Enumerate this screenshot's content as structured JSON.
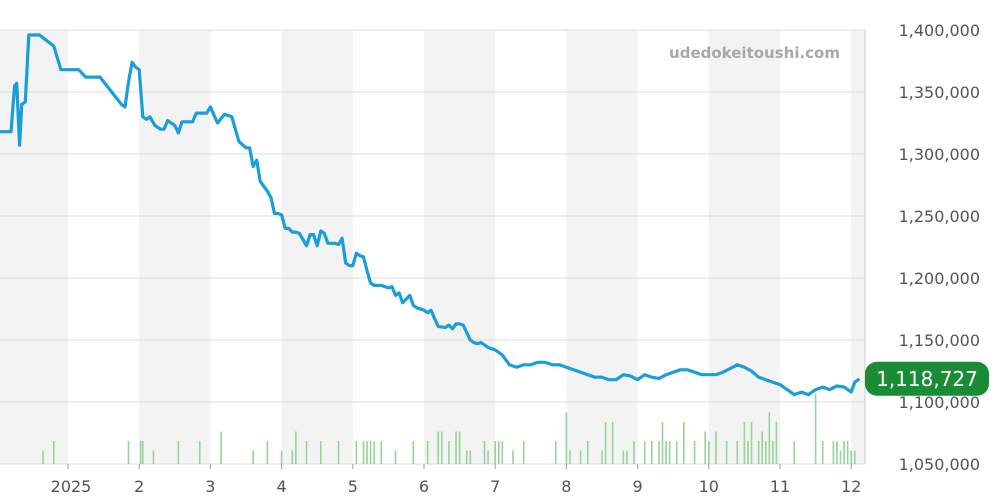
{
  "watermark": "udedokeitoushi.com",
  "colors": {
    "price_line": "#199ddb",
    "volume_bar": "#97d39a",
    "badge": "#1a8c35",
    "band": "#f3f3f3",
    "grid": "#dddddd"
  },
  "chart_data": {
    "type": "line",
    "title": "",
    "xlabel": "",
    "ylabel": "",
    "ylim": [
      1050000,
      1400000
    ],
    "y_ticks": [
      "1,400,000",
      "1,350,000",
      "1,300,000",
      "1,250,000",
      "1,200,000",
      "1,150,000",
      "1,100,000",
      "1,050,000"
    ],
    "y_tick_values": [
      1400000,
      1350000,
      1300000,
      1250000,
      1200000,
      1150000,
      1100000,
      1050000
    ],
    "x_tick_labels": [
      "2025",
      "2",
      "3",
      "4",
      "5",
      "6",
      "7",
      "8",
      "9",
      "10",
      "11",
      "12"
    ],
    "x_range_months": [
      -1.95,
      11.1
    ],
    "x_tick_months": [
      0,
      1,
      2,
      3,
      4,
      5,
      6,
      7,
      8,
      9,
      10,
      11
    ],
    "last_price_label": "1,118,727",
    "last_price": 1118727,
    "grid": true,
    "legend": "none",
    "series": [
      {
        "values_x_months": [
          -1.95,
          -1.9,
          -1.85,
          -1.8,
          -1.75,
          -1.3,
          -1.25,
          -1.1,
          -0.8,
          -0.75,
          -0.72,
          -0.68,
          -0.65,
          -0.6,
          -0.55,
          -0.4,
          -0.2,
          -0.1,
          0.15,
          0.25,
          0.45,
          0.75,
          0.8,
          0.85,
          0.9,
          0.95,
          1.0,
          1.05,
          1.1,
          1.15,
          1.22,
          1.3,
          1.35,
          1.4,
          1.45,
          1.5,
          1.55,
          1.6,
          1.65,
          1.7,
          1.75,
          1.8,
          1.85,
          1.9,
          1.95,
          2.0,
          2.1,
          2.2,
          2.3,
          2.4,
          2.5,
          2.55,
          2.6,
          2.65,
          2.7,
          2.8,
          2.85,
          2.9,
          2.95,
          3.0,
          3.05,
          3.1,
          3.15,
          3.2,
          3.25,
          3.3,
          3.35,
          3.4,
          3.45,
          3.5,
          3.55,
          3.6,
          3.65,
          3.7,
          3.75,
          3.8,
          3.85,
          3.9,
          3.95,
          4.0,
          4.05,
          4.1,
          4.15,
          4.2,
          4.25,
          4.3,
          4.4,
          4.5,
          4.55,
          4.6,
          4.65,
          4.7,
          4.8,
          4.85,
          4.9,
          5.0,
          5.05,
          5.1,
          5.15,
          5.2,
          5.3,
          5.35,
          5.4,
          5.45,
          5.5,
          5.55,
          5.6,
          5.65,
          5.7,
          5.75,
          5.8,
          5.85,
          5.9,
          5.95,
          6.0,
          6.1,
          6.2,
          6.3,
          6.4,
          6.5,
          6.6,
          6.7,
          6.8,
          6.9,
          7.0,
          7.1,
          7.2,
          7.3,
          7.4,
          7.5,
          7.6,
          7.7,
          7.8,
          7.9,
          8.0,
          8.1,
          8.2,
          8.3,
          8.4,
          8.5,
          8.6,
          8.7,
          8.8,
          8.9,
          9.0,
          9.1,
          9.2,
          9.3,
          9.4,
          9.5,
          9.6,
          9.7,
          9.8,
          9.9,
          10.0,
          10.1,
          10.2,
          10.3,
          10.4,
          10.5,
          10.6,
          10.7,
          10.8,
          10.9,
          11.0,
          11.05,
          11.1
        ],
        "values_y": [
          1365000,
          1345000,
          1345000,
          1328000,
          1327000,
          1327000,
          1318000,
          1318000,
          1318000,
          1355000,
          1357000,
          1307000,
          1340000,
          1342000,
          1396000,
          1396000,
          1387000,
          1368000,
          1368000,
          1362000,
          1362000,
          1340000,
          1338000,
          1358000,
          1374000,
          1370000,
          1368000,
          1330000,
          1328000,
          1330000,
          1323000,
          1320000,
          1320000,
          1327000,
          1325000,
          1323000,
          1317000,
          1326000,
          1326000,
          1326000,
          1326000,
          1333000,
          1333000,
          1333000,
          1333000,
          1338000,
          1325000,
          1332000,
          1330000,
          1310000,
          1305000,
          1305000,
          1290000,
          1295000,
          1278000,
          1270000,
          1265000,
          1252000,
          1252000,
          1251000,
          1240000,
          1240000,
          1237000,
          1237000,
          1236000,
          1231000,
          1226000,
          1235000,
          1235000,
          1226000,
          1238000,
          1236000,
          1228000,
          1228000,
          1228000,
          1227000,
          1232000,
          1212000,
          1210000,
          1210000,
          1220000,
          1218000,
          1217000,
          1206000,
          1196000,
          1194000,
          1194000,
          1192000,
          1193000,
          1186000,
          1188000,
          1180000,
          1186000,
          1178000,
          1176000,
          1174000,
          1172000,
          1174000,
          1167000,
          1161000,
          1160000,
          1162000,
          1159000,
          1163000,
          1163000,
          1162000,
          1156000,
          1150000,
          1148000,
          1147000,
          1148000,
          1146000,
          1144000,
          1143000,
          1142000,
          1138000,
          1130000,
          1128000,
          1130000,
          1130000,
          1132000,
          1132000,
          1130000,
          1130000,
          1128000,
          1126000,
          1124000,
          1122000,
          1120000,
          1120000,
          1118000,
          1118000,
          1122000,
          1121000,
          1118000,
          1122000,
          1120000,
          1119000,
          1122000,
          1124000,
          1126000,
          1126000,
          1124000,
          1122000,
          1122000,
          1122000,
          1124000,
          1127000,
          1130000,
          1128000,
          1125000,
          1120000,
          1118000,
          1116000,
          1114000,
          1110000,
          1106000,
          1108000,
          1106000,
          1110000,
          1112000,
          1110000,
          1113000,
          1112000,
          1108000,
          1116000,
          1118000,
          1119000,
          1118727,
          1118727
        ]
      }
    ],
    "volume_bars_x_months": [
      -0.35,
      -0.2,
      0.85,
      1.02,
      1.05,
      1.2,
      1.55,
      1.85,
      2.15,
      2.6,
      2.8,
      3.0,
      3.15,
      3.2,
      3.35,
      3.55,
      3.8,
      4.05,
      4.15,
      4.2,
      4.25,
      4.3,
      4.4,
      4.6,
      4.85,
      5.05,
      5.2,
      5.25,
      5.35,
      5.45,
      5.5,
      5.6,
      5.65,
      5.85,
      5.9,
      6.0,
      6.05,
      6.1,
      6.25,
      6.4,
      6.85,
      7.0,
      7.05,
      7.2,
      7.3,
      7.5,
      7.55,
      7.65,
      7.8,
      7.85,
      7.95,
      8.1,
      8.2,
      8.3,
      8.35,
      8.4,
      8.45,
      8.55,
      8.65,
      8.8,
      8.95,
      9.0,
      9.1,
      9.25,
      9.4,
      9.5,
      9.55,
      9.6,
      9.7,
      9.75,
      9.8,
      9.85,
      9.9,
      9.95,
      10.2,
      10.5,
      10.6,
      10.75,
      10.8,
      10.85,
      10.9,
      10.95,
      11.0,
      11.05
    ],
    "volume_bars_height": [
      1,
      2,
      2,
      2,
      2,
      1,
      2,
      2,
      3,
      1,
      2,
      1,
      1,
      3,
      2,
      2,
      2,
      2,
      2,
      2,
      2,
      2,
      2,
      1,
      2,
      2,
      3,
      3,
      2,
      3,
      3,
      1,
      1,
      2,
      1,
      2,
      2,
      2,
      1,
      2,
      2,
      5,
      1,
      1,
      2,
      1,
      4,
      4,
      1,
      1,
      2,
      2,
      2,
      2,
      4,
      2,
      2,
      2,
      4,
      2,
      3,
      2,
      3,
      2,
      2,
      4,
      2,
      4,
      2,
      3,
      2,
      5,
      2,
      4,
      2,
      7,
      2,
      2,
      2,
      1,
      2,
      2,
      1,
      1
    ]
  }
}
